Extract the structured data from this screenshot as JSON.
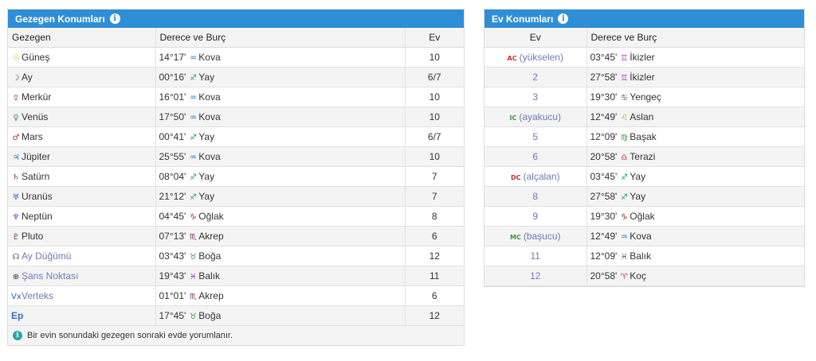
{
  "planets": {
    "title": "Gezegen Konumları",
    "headers": {
      "planet": "Gezegen",
      "degree": "Derece ve Burç",
      "house": "Ev"
    },
    "rows": [
      {
        "glyph": "☉",
        "glyph_color": "#e0a800",
        "name": "Güneş",
        "degree": "14°17'",
        "sign_glyph": "♒",
        "sign_color": "#2a7ab8",
        "sign": "Kova",
        "house": "10",
        "link": false
      },
      {
        "glyph": "☽",
        "glyph_color": "#444444",
        "name": "Ay",
        "degree": "00°16'",
        "sign_glyph": "♐",
        "sign_color": "#1f9a8a",
        "sign": "Yay",
        "house": "6/7",
        "link": false
      },
      {
        "glyph": "☿",
        "glyph_color": "#b03ac0",
        "name": "Merkür",
        "degree": "16°01'",
        "sign_glyph": "♒",
        "sign_color": "#2a7ab8",
        "sign": "Kova",
        "house": "10",
        "link": false
      },
      {
        "glyph": "♀",
        "glyph_color": "#2e9a3e",
        "name": "Venüs",
        "degree": "17°50'",
        "sign_glyph": "♒",
        "sign_color": "#2a7ab8",
        "sign": "Kova",
        "house": "10",
        "link": false
      },
      {
        "glyph": "♂",
        "glyph_color": "#c2322a",
        "name": "Mars",
        "degree": "00°41'",
        "sign_glyph": "♐",
        "sign_color": "#1f9a8a",
        "sign": "Yay",
        "house": "6/7",
        "link": false
      },
      {
        "glyph": "♃",
        "glyph_color": "#2a7ab8",
        "name": "Jüpiter",
        "degree": "25°55'",
        "sign_glyph": "♒",
        "sign_color": "#2a7ab8",
        "sign": "Kova",
        "house": "10",
        "link": false
      },
      {
        "glyph": "♄",
        "glyph_color": "#a0401a",
        "name": "Satürn",
        "degree": "08°04'",
        "sign_glyph": "♐",
        "sign_color": "#1f9a8a",
        "sign": "Yay",
        "house": "7",
        "link": false
      },
      {
        "glyph": "♅",
        "glyph_color": "#2f5fb3",
        "name": "Uranüs",
        "degree": "21°12'",
        "sign_glyph": "♐",
        "sign_color": "#1f9a8a",
        "sign": "Yay",
        "house": "7",
        "link": false
      },
      {
        "glyph": "♆",
        "glyph_color": "#8a3ab8",
        "name": "Neptün",
        "degree": "04°45'",
        "sign_glyph": "♑",
        "sign_color": "#a0301a",
        "sign": "Oğlak",
        "house": "8",
        "link": false
      },
      {
        "glyph": "♇",
        "glyph_color": "#7a2a6a",
        "name": "Pluto",
        "degree": "07°13'",
        "sign_glyph": "♏",
        "sign_color": "#7a2a6a",
        "sign": "Akrep",
        "house": "6",
        "link": false
      },
      {
        "glyph": "☊",
        "glyph_color": "#555555",
        "name": "Ay Düğümü",
        "degree": "03°43'",
        "sign_glyph": "♉",
        "sign_color": "#2e9a3e",
        "sign": "Boğa",
        "house": "12",
        "link": true
      },
      {
        "glyph": "⊕",
        "glyph_color": "#333333",
        "name": "Şans Noktası",
        "degree": "19°43'",
        "sign_glyph": "♓",
        "sign_color": "#8a3ab8",
        "sign": "Balık",
        "house": "11",
        "link": true
      },
      {
        "glyph": "Vx",
        "glyph_color": "#2f5fb3",
        "name": "Verteks",
        "degree": "01°01'",
        "sign_glyph": "♏",
        "sign_color": "#7a2a6a",
        "sign": "Akrep",
        "house": "6",
        "link": true
      },
      {
        "glyph": "",
        "glyph_color": "#3a6fc4",
        "name": "Ep",
        "degree": "17°45'",
        "sign_glyph": "♉",
        "sign_color": "#2e9a3e",
        "sign": "Boğa",
        "house": "12",
        "link": false,
        "ep": true
      }
    ],
    "footer_note": "Bir evin sonundaki gezegen sonraki evde yorumlanır."
  },
  "houses": {
    "title": "Ev Konumları",
    "headers": {
      "house": "Ev",
      "degree": "Derece ve Burç"
    },
    "rows": [
      {
        "badge": "AC",
        "badge_color": "#d02a2a",
        "house": "(yükselen)",
        "degree": "03°45'",
        "sign_glyph": "♊",
        "sign_color": "#b03ac0",
        "sign": "İkizler"
      },
      {
        "badge": "",
        "badge_color": "",
        "house": "2",
        "degree": "27°58'",
        "sign_glyph": "♊",
        "sign_color": "#b03ac0",
        "sign": "İkizler"
      },
      {
        "badge": "",
        "badge_color": "",
        "house": "3",
        "degree": "19°30'",
        "sign_glyph": "♋",
        "sign_color": "#555555",
        "sign": "Yengeç"
      },
      {
        "badge": "IC",
        "badge_color": "#2e9a3e",
        "house": "(ayakucu)",
        "degree": "12°49'",
        "sign_glyph": "♌",
        "sign_color": "#e0a800",
        "sign": "Aslan"
      },
      {
        "badge": "",
        "badge_color": "",
        "house": "5",
        "degree": "12°09'",
        "sign_glyph": "♍",
        "sign_color": "#2e9a3e",
        "sign": "Başak"
      },
      {
        "badge": "",
        "badge_color": "",
        "house": "6",
        "degree": "20°58'",
        "sign_glyph": "♎",
        "sign_color": "#c2322a",
        "sign": "Terazi"
      },
      {
        "badge": "DC",
        "badge_color": "#d02a2a",
        "house": "(alçalan)",
        "degree": "03°45'",
        "sign_glyph": "♐",
        "sign_color": "#1f9a8a",
        "sign": "Yay"
      },
      {
        "badge": "",
        "badge_color": "",
        "house": "8",
        "degree": "27°58'",
        "sign_glyph": "♐",
        "sign_color": "#1f9a8a",
        "sign": "Yay"
      },
      {
        "badge": "",
        "badge_color": "",
        "house": "9",
        "degree": "19°30'",
        "sign_glyph": "♑",
        "sign_color": "#a0301a",
        "sign": "Oğlak"
      },
      {
        "badge": "MC",
        "badge_color": "#2e9a3e",
        "house": "(başucu)",
        "degree": "12°49'",
        "sign_glyph": "♒",
        "sign_color": "#2a7ab8",
        "sign": "Kova"
      },
      {
        "badge": "",
        "badge_color": "",
        "house": "11",
        "degree": "12°09'",
        "sign_glyph": "♓",
        "sign_color": "#8a3ab8",
        "sign": "Balık"
      },
      {
        "badge": "",
        "badge_color": "",
        "house": "12",
        "degree": "20°58'",
        "sign_glyph": "♈",
        "sign_color": "#c2322a",
        "sign": "Koç"
      }
    ]
  }
}
